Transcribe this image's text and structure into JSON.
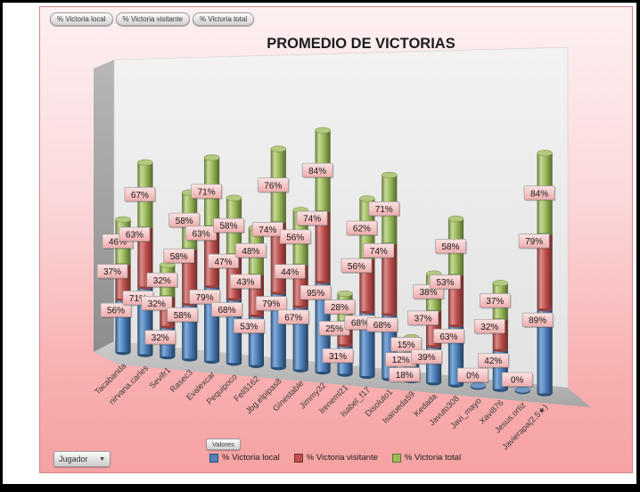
{
  "filter_buttons": [
    "% Victoria local",
    "% Victoria visitante",
    "% Victoria total"
  ],
  "title": "PROMEDIO DE VICTORIAS",
  "axis_field_button": "Jugador",
  "values_field_button": "Valores",
  "legend": [
    {
      "label": "% Victoria local",
      "color": "#4F81BD"
    },
    {
      "label": "% Victoria visitante",
      "color": "#C0504D"
    },
    {
      "label": "% Victoria total",
      "color": "#9BBB59"
    }
  ],
  "colors": {
    "background_top": "#fdf0f1",
    "background_bottom": "#f6a2a2",
    "wall": "#ebebeb",
    "floor": "#b5b5b5",
    "label_box": "#f6c4c4"
  },
  "chart_data": {
    "type": "bar",
    "subtype": "3d-stacked-cylinder",
    "title": "PROMEDIO DE VICTORIAS",
    "value_suffix": "%",
    "axis_labels_visible": false,
    "legend_position": "bottom",
    "categories": [
      "Tacabanda",
      "nirvana.carles",
      "Sevifr1",
      "Rasec3",
      "Evalexcar",
      "Pequipoco",
      "Feli5162",
      "Jbg.elpipas8",
      "Ginestable",
      "Jimmy32",
      "Ireneml21",
      "Isabel_f17",
      "Disoluto1",
      "Isarueda59",
      "Kedada",
      "Javuto308",
      "Javi_mayo",
      "Xavi876",
      "Jesus.ortiz",
      "Javierapa(2,5★)"
    ],
    "series": [
      {
        "name": "% Victoria local",
        "color": "#4F81BD",
        "values": [
          56,
          71,
          32,
          58,
          79,
          68,
          53,
          79,
          67,
          95,
          31,
          68,
          68,
          18,
          39,
          63,
          0,
          42,
          0,
          89
        ]
      },
      {
        "name": "% Victoria visitante",
        "color": "#C0504D",
        "values": [
          37,
          63,
          32,
          58,
          63,
          47,
          43,
          74,
          44,
          74,
          25,
          56,
          74,
          12,
          37,
          53,
          0,
          32,
          0,
          79
        ]
      },
      {
        "name": "% Victoria total",
        "color": "#9BBB59",
        "values": [
          46,
          67,
          32,
          58,
          71,
          58,
          48,
          76,
          56,
          84,
          28,
          62,
          71,
          15,
          38,
          58,
          0,
          37,
          0,
          84
        ]
      }
    ]
  }
}
